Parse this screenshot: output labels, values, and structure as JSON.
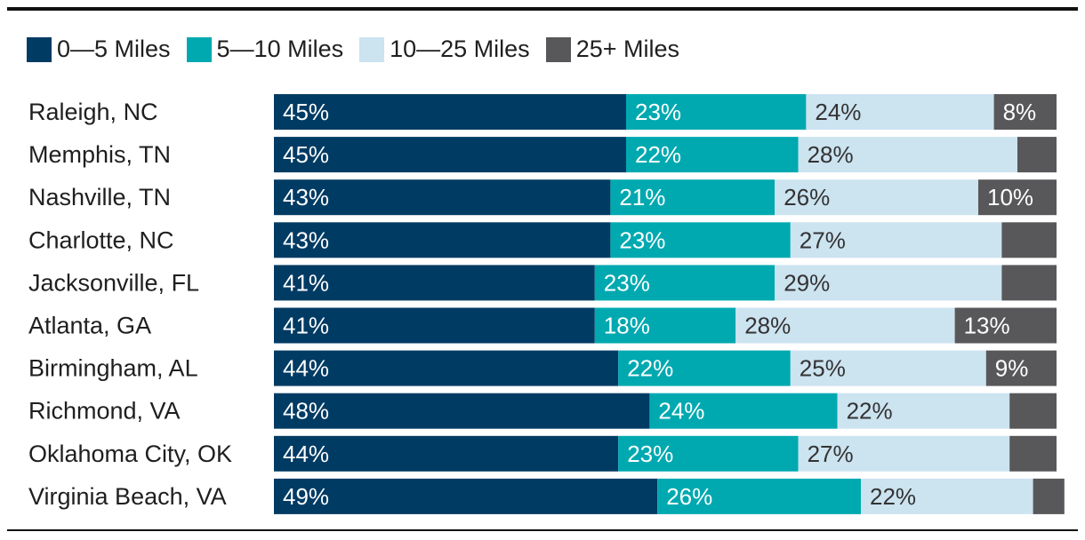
{
  "chart_data": {
    "type": "bar",
    "orientation": "horizontal",
    "stacked": true,
    "categories": [
      "Raleigh, NC",
      "Memphis, TN",
      "Nashville, TN",
      "Charlotte, NC",
      "Jacksonville, FL",
      "Atlanta, GA",
      "Birmingham, AL",
      "Richmond, VA",
      "Oklahoma City, OK",
      "Virginia Beach, VA"
    ],
    "series": [
      {
        "name": "0—5 Miles",
        "color": "#003b64",
        "label_color": "#ffffff",
        "values": [
          45,
          45,
          43,
          43,
          41,
          41,
          44,
          48,
          44,
          49
        ],
        "labels": [
          "45%",
          "45%",
          "43%",
          "43%",
          "41%",
          "41%",
          "44%",
          "48%",
          "44%",
          "49%"
        ]
      },
      {
        "name": "5—10 Miles",
        "color": "#00a9b0",
        "label_color": "#ffffff",
        "values": [
          23,
          22,
          21,
          23,
          23,
          18,
          22,
          24,
          23,
          26
        ],
        "labels": [
          "23%",
          "22%",
          "21%",
          "23%",
          "23%",
          "18%",
          "22%",
          "24%",
          "23%",
          "26%"
        ]
      },
      {
        "name": "10—25 Miles",
        "color": "#cce3f0",
        "label_color": "#333333",
        "values": [
          24,
          28,
          26,
          27,
          29,
          28,
          25,
          22,
          27,
          22
        ],
        "labels": [
          "24%",
          "28%",
          "26%",
          "27%",
          "29%",
          "28%",
          "25%",
          "22%",
          "27%",
          "22%"
        ]
      },
      {
        "name": "25+ Miles",
        "color": "#58585a",
        "label_color": "#ffffff",
        "values": [
          8,
          5,
          10,
          7,
          7,
          13,
          9,
          6,
          6,
          4
        ],
        "labels": [
          "8%",
          "",
          "10%",
          "",
          "",
          "13%",
          "9%",
          "",
          "",
          ""
        ]
      }
    ],
    "xlim": [
      0,
      100
    ],
    "legend_position": "top-left"
  }
}
